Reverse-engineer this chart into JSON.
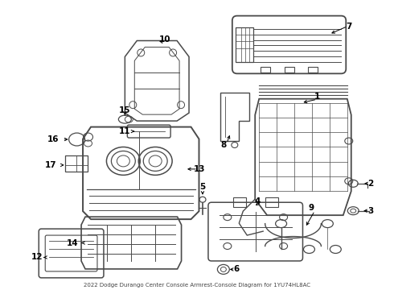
{
  "title": "2022 Dodge Durango Center Console Armrest-Console Diagram for 1YU74HL8AC",
  "background_color": "#ffffff",
  "line_color": "#4a4a4a",
  "text_color": "#000000",
  "figsize": [
    4.9,
    3.6
  ],
  "dpi": 100,
  "label_fontsize": 7.5
}
